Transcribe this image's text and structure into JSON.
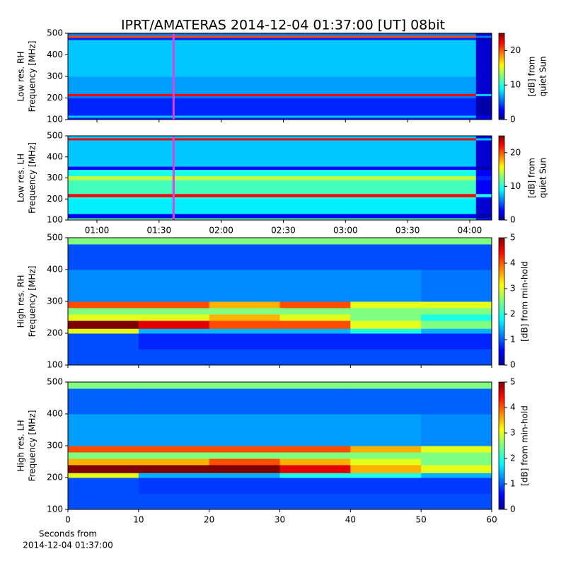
{
  "chart_data": [
    {
      "type": "heatmap",
      "title": "IPRT/AMATERAS 2014-12-04 01:37:00 [UT]   08bit",
      "ylabel": [
        "Low res. RH",
        "Frequency [MHz]"
      ],
      "colorbar_label": [
        "[dB] from",
        "quiet Sun"
      ],
      "xlim": [
        46,
        250.6
      ],
      "xticks": [
        60,
        90,
        120,
        150,
        180,
        210,
        240
      ],
      "xticklabels": false,
      "ylim": [
        100,
        500
      ],
      "yticks": [
        100,
        200,
        300,
        400,
        500
      ],
      "clim": [
        0,
        25
      ],
      "cticks": [
        0,
        10,
        20
      ],
      "colormap": "jet",
      "x": [
        46,
        243,
        250.6
      ],
      "y": [
        100,
        110,
        120,
        200,
        210,
        220,
        300,
        470,
        480,
        490,
        500
      ],
      "z": [
        [
          4,
          2
        ],
        [
          8,
          3
        ],
        [
          4,
          1
        ],
        [
          6,
          2
        ],
        [
          22,
          8
        ],
        [
          7,
          2
        ],
        [
          8,
          2
        ],
        [
          4,
          1
        ],
        [
          20,
          6
        ],
        [
          6,
          2
        ]
      ],
      "marker_x": 97,
      "marker_color": "#e040e0"
    },
    {
      "type": "heatmap",
      "ylabel": [
        "Low res. LH",
        "Frequency [MHz]"
      ],
      "colorbar_label": [
        "[dB] from",
        "quiet Sun"
      ],
      "xlim": [
        46,
        250.6
      ],
      "xticks": [
        {
          "value": 60,
          "label": "01:00"
        },
        {
          "value": 90,
          "label": "01:30"
        },
        {
          "value": 120,
          "label": "02:00"
        },
        {
          "value": 150,
          "label": "02:30"
        },
        {
          "value": 180,
          "label": "03:00"
        },
        {
          "value": 210,
          "label": "03:30"
        },
        {
          "value": 240,
          "label": "04:00"
        }
      ],
      "ylim": [
        100,
        500
      ],
      "yticks": [
        100,
        200,
        300,
        400,
        500
      ],
      "clim": [
        0,
        25
      ],
      "cticks": [
        0,
        10,
        20
      ],
      "colormap": "jet",
      "x": [
        46,
        243,
        250.6
      ],
      "y": [
        100,
        110,
        130,
        200,
        210,
        225,
        290,
        310,
        340,
        355,
        480,
        490,
        500
      ],
      "z": [
        [
          12,
          4
        ],
        [
          3,
          1
        ],
        [
          9,
          2
        ],
        [
          10,
          3
        ],
        [
          22,
          10
        ],
        [
          11,
          3
        ],
        [
          14,
          4
        ],
        [
          10,
          3
        ],
        [
          3,
          1
        ],
        [
          8,
          2
        ],
        [
          22,
          8
        ],
        [
          8,
          2
        ]
      ],
      "marker_x": 97,
      "marker_color": "#e040e0"
    },
    {
      "type": "heatmap",
      "ylabel": [
        "High res. RH",
        "Frequency [MHz]"
      ],
      "colorbar_label": [
        "[dB] from min-hold"
      ],
      "xlim": [
        0,
        60
      ],
      "xticks": [
        0,
        10,
        20,
        30,
        40,
        50,
        60
      ],
      "xticklabels": false,
      "ylim": [
        100,
        500
      ],
      "yticks": [
        100,
        200,
        300,
        400,
        500
      ],
      "clim": [
        0,
        5
      ],
      "cticks": [
        0,
        1,
        2,
        3,
        4,
        5
      ],
      "colormap": "jet",
      "x": [
        0,
        10,
        20,
        30,
        40,
        50,
        60
      ],
      "y": [
        100,
        150,
        200,
        215,
        240,
        260,
        280,
        300,
        400,
        480,
        500
      ],
      "z": [
        [
          1,
          1,
          1,
          1,
          1,
          1
        ],
        [
          1,
          0.8,
          0.8,
          0.8,
          0.8,
          0.8
        ],
        [
          3,
          1.5,
          1.5,
          1.5,
          2,
          1.5
        ],
        [
          5,
          4.5,
          4,
          4,
          3,
          2.5
        ],
        [
          3,
          3,
          3.5,
          3,
          2.5,
          2
        ],
        [
          2.5,
          2.5,
          2.5,
          2.5,
          2.5,
          2.5
        ],
        [
          4,
          4,
          3.5,
          4,
          3,
          3
        ],
        [
          1.3,
          1.3,
          1.3,
          1.3,
          1.3,
          1.2
        ],
        [
          1,
          1,
          1,
          1,
          1,
          1
        ],
        [
          2.5,
          2.5,
          2.5,
          2.5,
          2.5,
          2.5
        ]
      ]
    },
    {
      "type": "heatmap",
      "ylabel": [
        "High res. LH",
        "Frequency [MHz]"
      ],
      "colorbar_label": [
        "[dB] from min-hold"
      ],
      "xlabel": [
        "Seconds from",
        "2014-12-04 01:37:00"
      ],
      "xlim": [
        0,
        60
      ],
      "xticks": [
        0,
        10,
        20,
        30,
        40,
        50,
        60
      ],
      "ylim": [
        100,
        500
      ],
      "yticks": [
        100,
        200,
        300,
        400,
        500
      ],
      "clim": [
        0,
        5
      ],
      "cticks": [
        0,
        1,
        2,
        3,
        4,
        5
      ],
      "colormap": "jet",
      "x": [
        0,
        10,
        20,
        30,
        40,
        50,
        60
      ],
      "y": [
        100,
        150,
        200,
        215,
        240,
        260,
        280,
        300,
        400,
        480,
        500
      ],
      "z": [
        [
          1,
          1,
          1,
          1,
          1,
          1
        ],
        [
          1,
          0.9,
          0.9,
          0.9,
          0.9,
          0.9
        ],
        [
          3,
          1.5,
          1.5,
          2,
          2,
          1.5
        ],
        [
          5,
          5,
          5,
          4.5,
          3.5,
          3
        ],
        [
          3.5,
          3.5,
          4,
          3.5,
          3,
          2.5
        ],
        [
          2.5,
          2.5,
          2.5,
          2.5,
          2.5,
          2.5
        ],
        [
          4,
          4,
          4,
          4,
          3.5,
          3
        ],
        [
          1.4,
          1.4,
          1.4,
          1.4,
          1.4,
          1.3
        ],
        [
          1.1,
          1.1,
          1.1,
          1.1,
          1.1,
          1.1
        ],
        [
          2.5,
          2.5,
          2.5,
          2.5,
          2.5,
          2.5
        ]
      ]
    }
  ]
}
